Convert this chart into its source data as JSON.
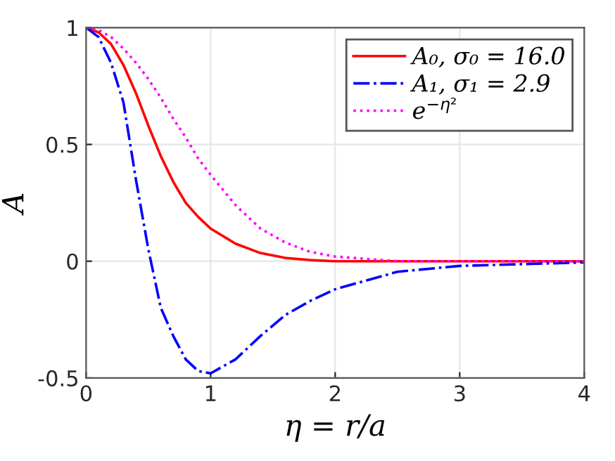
{
  "chart_data": {
    "type": "line",
    "xlabel": "η = r/a",
    "ylabel": "A",
    "xlim": [
      0,
      4
    ],
    "ylim": [
      -0.5,
      1
    ],
    "xticks": [
      0,
      1,
      2,
      3,
      4
    ],
    "yticks": [
      {
        "value": -0.5,
        "label": "-0.5"
      },
      0,
      0.5,
      1
    ],
    "grid": true,
    "legend": "top right",
    "x": [
      0,
      0.1,
      0.2,
      0.3,
      0.4,
      0.5,
      0.6,
      0.7,
      0.8,
      0.9,
      1,
      1.2,
      1.4,
      1.6,
      1.8,
      2,
      2.5,
      3,
      4
    ],
    "series": [
      {
        "name": "A₀, σ₀ = 16.0",
        "color": "#ff0000",
        "line_style": "solid",
        "values": [
          1,
          0.98,
          0.93,
          0.84,
          0.72,
          0.58,
          0.45,
          0.34,
          0.25,
          0.19,
          0.14,
          0.075,
          0.035,
          0.014,
          0.005,
          0,
          0,
          0,
          0
        ]
      },
      {
        "name": "A₁, σ₁ = 2.9",
        "color": "#0000ff",
        "line_style": "dashdot",
        "values": [
          1,
          0.96,
          0.85,
          0.68,
          0.35,
          0.05,
          -0.2,
          -0.32,
          -0.42,
          -0.47,
          -0.48,
          -0.42,
          -0.32,
          -0.23,
          -0.17,
          -0.12,
          -0.045,
          -0.02,
          -0.005
        ]
      },
      {
        "name": "e$^{−η²}$",
        "color": "#ff00ff",
        "line_style": "dotted",
        "values": [
          1,
          0.99,
          0.96,
          0.91,
          0.85,
          0.78,
          0.7,
          0.61,
          0.53,
          0.44,
          0.37,
          0.24,
          0.14,
          0.08,
          0.04,
          0.02,
          0,
          0,
          0
        ]
      }
    ]
  }
}
